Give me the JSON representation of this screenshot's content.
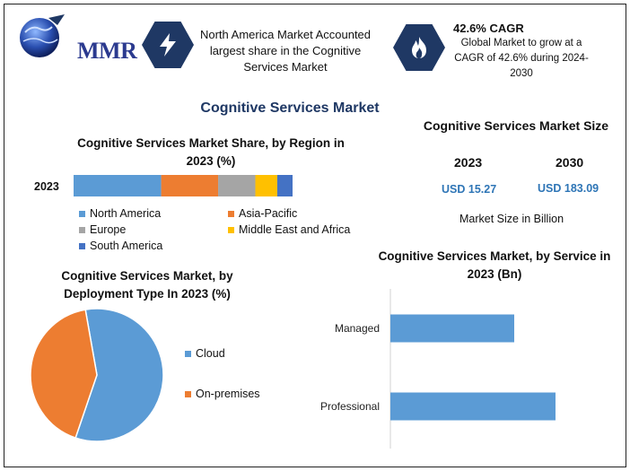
{
  "header": {
    "logo_text": "MMR",
    "info1": "North America Market Accounted largest share in the Cognitive Services Market",
    "info2_title": "42.6% CAGR",
    "info2_body": "Global Market to grow at a CAGR of 42.6% during 2024-2030",
    "icons": [
      "lightning-icon",
      "flame-icon"
    ]
  },
  "main_title": "Cognitive Services Market",
  "market_size": {
    "title": "Cognitive Services Market Size",
    "years": [
      "2023",
      "2030"
    ],
    "values": [
      "USD 15.27",
      "USD 183.09"
    ],
    "unit_note": "Market Size in Billion"
  },
  "colors": {
    "north_america": "#5b9bd5",
    "asia_pacific": "#ed7d31",
    "europe": "#a5a5a5",
    "mea": "#ffc000",
    "south_america": "#4472c4",
    "dark_blue": "#1f3864"
  },
  "chart_data": [
    {
      "type": "bar",
      "orientation": "horizontal-stacked",
      "title": "Cognitive Services Market Share, by Region in 2023 (%)",
      "categories": [
        "2023"
      ],
      "series": [
        {
          "name": "North America",
          "values": [
            40
          ],
          "color": "#5b9bd5"
        },
        {
          "name": "Asia-Pacific",
          "values": [
            26
          ],
          "color": "#ed7d31"
        },
        {
          "name": "Europe",
          "values": [
            17
          ],
          "color": "#a5a5a5"
        },
        {
          "name": "Middle East and Africa",
          "values": [
            10
          ],
          "color": "#ffc000"
        },
        {
          "name": "South America",
          "values": [
            7
          ],
          "color": "#4472c4"
        }
      ],
      "legend_order": [
        "North America",
        "Asia-Pacific",
        "Europe",
        "Middle East and Africa",
        "South America"
      ],
      "legend": "bottom"
    },
    {
      "type": "pie",
      "title": "Cognitive Services Market, by Deployment Type In 2023 (%)",
      "labels": [
        "Cloud",
        "On-premises"
      ],
      "values": [
        58,
        42
      ],
      "colors": [
        "#5b9bd5",
        "#ed7d31"
      ],
      "legend": "right"
    },
    {
      "type": "bar",
      "orientation": "horizontal",
      "title": "Cognitive Services Market, by Service in 2023 (Bn)",
      "categories": [
        "Managed",
        "Professional"
      ],
      "values": [
        6.6,
        8.8
      ],
      "xlim": [
        0,
        11
      ],
      "color": "#5b9bd5",
      "grid": false
    }
  ]
}
